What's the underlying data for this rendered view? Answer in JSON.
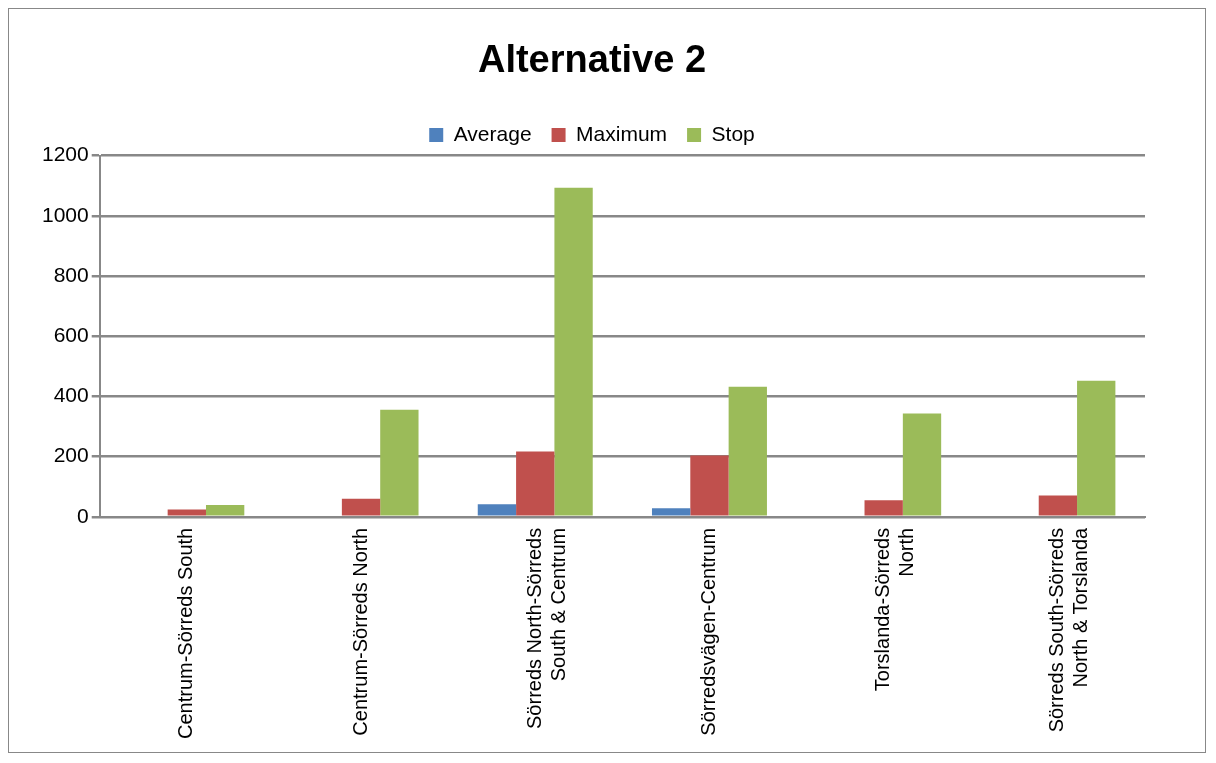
{
  "chart_data": {
    "type": "bar",
    "title": "Alternative 2",
    "categories": [
      "Centrum-Sörreds South",
      "Centrum-Sörreds North",
      "Sörreds North-Sörreds South & Centrum",
      "Sörredsvägen-Centrum",
      "Torslanda-Sörreds North",
      "Sörreds South-Sörreds North & Torslanda"
    ],
    "series": [
      {
        "name": "Average",
        "color": "#4f81bd",
        "values": [
          null,
          null,
          42,
          28,
          null,
          null
        ]
      },
      {
        "name": "Maximum",
        "color": "#c0504d",
        "values": [
          24,
          60,
          217,
          204,
          55,
          71
        ]
      },
      {
        "name": "Stop",
        "color": "#9bbb59",
        "values": [
          39,
          356,
          1093,
          432,
          343,
          452
        ]
      }
    ],
    "ylim": [
      0,
      1200
    ],
    "yticks": [
      0,
      200,
      400,
      600,
      800,
      1000,
      1200
    ],
    "grid": "y",
    "legend": "top"
  }
}
